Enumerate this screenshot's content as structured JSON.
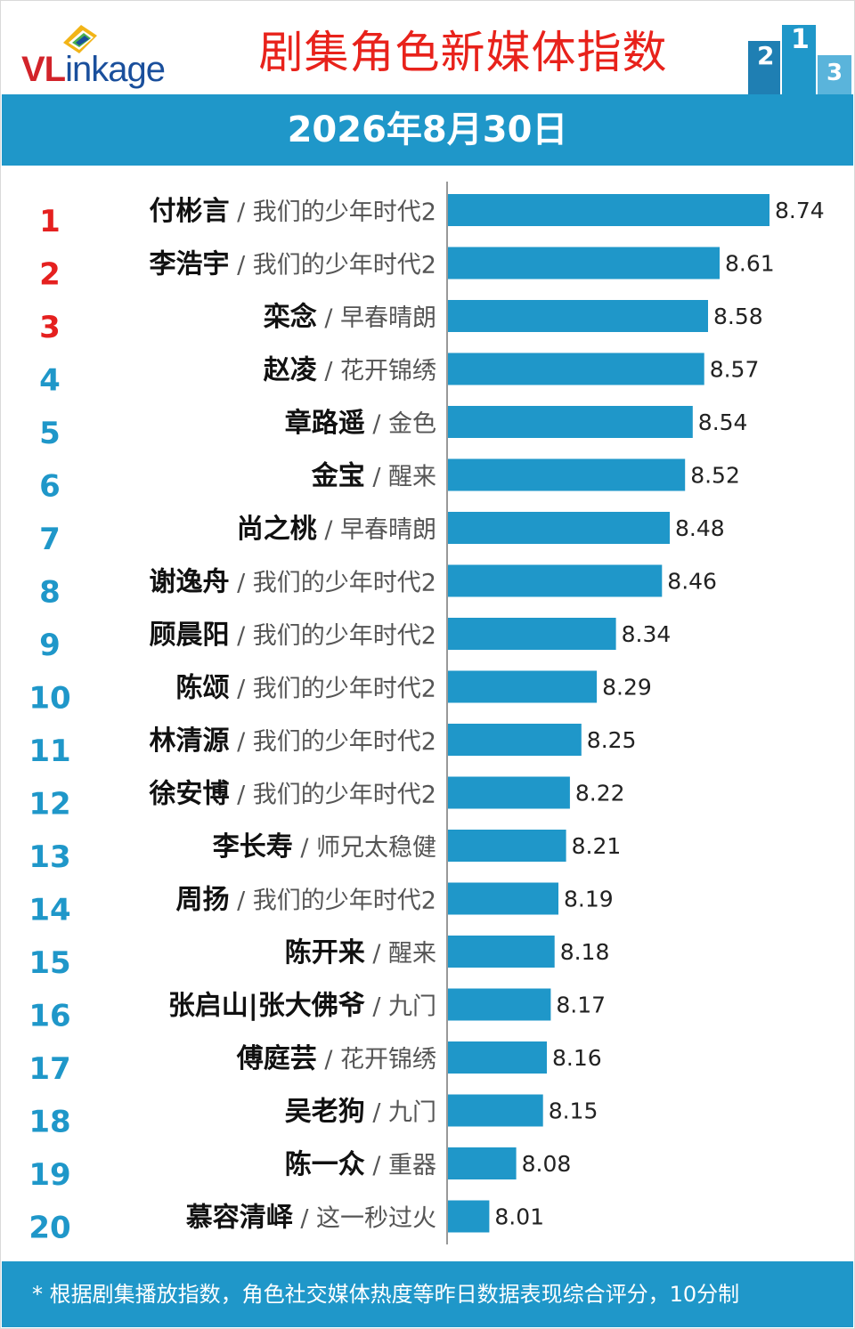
{
  "header": {
    "logo_text_red": "VL",
    "logo_text_blue": "inkage",
    "title": "剧集角色新媒体指数",
    "date": "2026年8月30日"
  },
  "footer": {
    "note": "* 根据剧集播放指数，角色社交媒体热度等昨日数据表现综合评分，10分制"
  },
  "colors": {
    "bar": "#1f97c9",
    "rank_top3": "#e5201f",
    "rank_other": "#1f97c9",
    "title": "#e8221b"
  },
  "chart_data": {
    "type": "bar",
    "orientation": "horizontal",
    "title": "剧集角色新媒体指数",
    "ranks": [
      "1",
      "2",
      "3",
      "4",
      "5",
      "6",
      "7",
      "8",
      "9",
      "10",
      "11",
      "12",
      "13",
      "14",
      "15",
      "16",
      "17",
      "18",
      "19",
      "20"
    ],
    "categories": [
      "付彬言",
      "李浩宇",
      "栾念",
      "赵凌",
      "章路遥",
      "金宝",
      "尚之桃",
      "谢逸舟",
      "顾晨阳",
      "陈颂",
      "林清源",
      "徐安博",
      "李长寿",
      "周扬",
      "陈开来",
      "张启山|张大佛爷",
      "傅庭芸",
      "吴老狗",
      "陈一众",
      "慕容清峄"
    ],
    "shows": [
      "我们的少年时代2",
      "我们的少年时代2",
      "早春晴朗",
      "花开锦绣",
      "金色",
      "醒来",
      "早春晴朗",
      "我们的少年时代2",
      "我们的少年时代2",
      "我们的少年时代2",
      "我们的少年时代2",
      "我们的少年时代2",
      "师兄太稳健",
      "我们的少年时代2",
      "醒来",
      "九门",
      "花开锦绣",
      "九门",
      "重器",
      "这一秒过火"
    ],
    "values": [
      8.74,
      8.61,
      8.58,
      8.57,
      8.54,
      8.52,
      8.48,
      8.46,
      8.34,
      8.29,
      8.25,
      8.22,
      8.21,
      8.19,
      8.18,
      8.17,
      8.16,
      8.15,
      8.08,
      8.01
    ],
    "value_labels": [
      "8.74",
      "8.61",
      "8.58",
      "8.57",
      "8.54",
      "8.52",
      "8.48",
      "8.46",
      "8.34",
      "8.29",
      "8.25",
      "8.22",
      "8.21",
      "8.19",
      "8.18",
      "8.17",
      "8.16",
      "8.15",
      "8.08",
      "8.01"
    ],
    "xlim": [
      7.9,
      8.74
    ],
    "grid": false,
    "legend": "none"
  }
}
